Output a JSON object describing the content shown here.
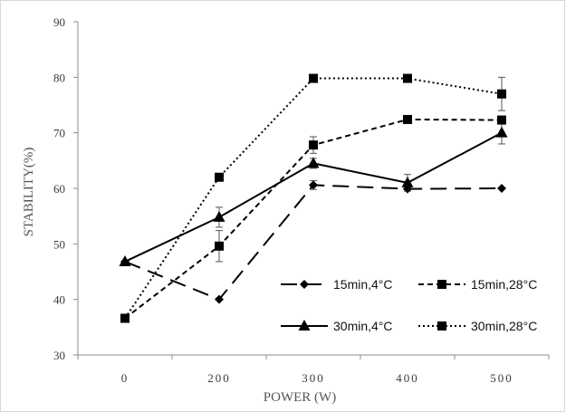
{
  "chart_data": {
    "type": "line",
    "xlabel": "POWER (W)",
    "ylabel": "STABILITY(%)",
    "categories": [
      "0",
      "200",
      "300",
      "400",
      "500"
    ],
    "ylim": [
      30,
      90
    ],
    "yticks": [
      "30",
      "40",
      "50",
      "60",
      "70",
      "80",
      "90"
    ],
    "grid": false,
    "legend_position": "bottom-right",
    "series": [
      {
        "name": "15min,4°C",
        "values": [
          46.8,
          40.0,
          60.6,
          59.9,
          60.0
        ],
        "errors": [
          0,
          0,
          0.8,
          0,
          0
        ],
        "marker": "diamond",
        "dash": "long-dash"
      },
      {
        "name": "15min,28°C",
        "values": [
          36.6,
          49.6,
          67.8,
          72.4,
          72.3
        ],
        "errors": [
          0,
          2.8,
          1.5,
          0,
          0
        ],
        "marker": "square",
        "dash": "dash"
      },
      {
        "name": "30min,4°C",
        "values": [
          46.8,
          54.8,
          64.5,
          61.0,
          70.0
        ],
        "errors": [
          0,
          1.8,
          0.9,
          1.5,
          2.0
        ],
        "marker": "triangle",
        "dash": "solid"
      },
      {
        "name": "30min,28°C",
        "values": [
          36.6,
          62.0,
          79.8,
          79.8,
          77.0
        ],
        "errors": [
          0,
          0,
          0,
          0,
          3.0
        ],
        "marker": "square",
        "dash": "dotted"
      }
    ],
    "legend_order": [
      [
        "15min,4°C",
        "15min,28°C"
      ],
      [
        "30min,4°C",
        "30min,28°C"
      ]
    ],
    "line_color": "#000000",
    "axis_color": "#8c8c8c"
  }
}
